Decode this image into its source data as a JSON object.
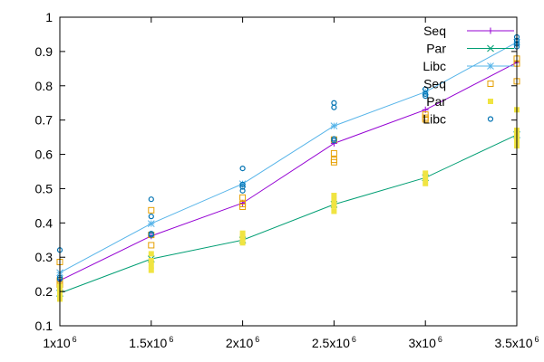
{
  "chart_data": {
    "type": "line",
    "title": "",
    "xlabel": "",
    "ylabel": "",
    "xlim": [
      1000000,
      3500000
    ],
    "ylim": [
      0.1,
      1.0
    ],
    "grid": false,
    "legend_position": "top-right",
    "x_ticks": [
      {
        "value": 1000000,
        "base": "1x10",
        "exp": "6"
      },
      {
        "value": 1500000,
        "base": "1.5x10",
        "exp": "6"
      },
      {
        "value": 2000000,
        "base": "2x10",
        "exp": "6"
      },
      {
        "value": 2500000,
        "base": "2.5x10",
        "exp": "6"
      },
      {
        "value": 3000000,
        "base": "3x10",
        "exp": "6"
      },
      {
        "value": 3500000,
        "base": "3.5x10",
        "exp": "6"
      }
    ],
    "y_ticks": [
      {
        "value": 0.1,
        "label": "0.1"
      },
      {
        "value": 0.2,
        "label": "0.2"
      },
      {
        "value": 0.3,
        "label": "0.3"
      },
      {
        "value": 0.4,
        "label": "0.4"
      },
      {
        "value": 0.5,
        "label": "0.5"
      },
      {
        "value": 0.6,
        "label": "0.6"
      },
      {
        "value": 0.7,
        "label": "0.7"
      },
      {
        "value": 0.8,
        "label": "0.8"
      },
      {
        "value": 0.9,
        "label": "0.9"
      },
      {
        "value": 1.0,
        "label": "1"
      }
    ],
    "series": [
      {
        "name": "Seq",
        "kind": "line",
        "marker": "plus",
        "color": "#9400d3",
        "x": [
          1000000,
          1500000,
          2000000,
          2500000,
          3000000,
          3500000
        ],
        "y": [
          0.232,
          0.362,
          0.458,
          0.632,
          0.73,
          0.868
        ]
      },
      {
        "name": "Par",
        "kind": "line",
        "marker": "cross",
        "color": "#009e73",
        "x": [
          1000000,
          1500000,
          2000000,
          2500000,
          3000000,
          3500000
        ],
        "y": [
          0.195,
          0.295,
          0.35,
          0.454,
          0.532,
          0.657
        ]
      },
      {
        "name": "Libc",
        "kind": "line",
        "marker": "star",
        "color": "#56b4e9",
        "x": [
          1000000,
          1500000,
          2000000,
          2500000,
          3000000,
          3500000
        ],
        "y": [
          0.255,
          0.398,
          0.514,
          0.683,
          0.782,
          0.927
        ]
      },
      {
        "name": "Seq",
        "kind": "points",
        "marker": "open-square",
        "color": "#e69f00",
        "x": [
          1000000,
          1000000,
          1000000,
          1500000,
          1500000,
          1500000,
          2000000,
          2000000,
          2000000,
          2500000,
          2500000,
          2500000,
          2500000,
          3000000,
          3000000,
          3000000,
          3500000,
          3500000,
          3500000
        ],
        "y": [
          0.286,
          0.232,
          0.22,
          0.437,
          0.365,
          0.335,
          0.474,
          0.455,
          0.447,
          0.643,
          0.603,
          0.584,
          0.577,
          0.716,
          0.707,
          0.702,
          0.879,
          0.865,
          0.813
        ]
      },
      {
        "name": "Par",
        "kind": "points",
        "marker": "filled-square",
        "color": "#f0e442",
        "x": [
          1000000,
          1000000,
          1000000,
          1000000,
          1500000,
          1500000,
          1500000,
          1500000,
          2000000,
          2000000,
          2000000,
          2000000,
          2500000,
          2500000,
          2500000,
          2500000,
          3000000,
          3000000,
          3000000,
          3500000,
          3500000,
          3500000,
          3500000,
          3500000
        ],
        "y": [
          0.215,
          0.2,
          0.188,
          0.178,
          0.31,
          0.29,
          0.275,
          0.262,
          0.37,
          0.36,
          0.35,
          0.342,
          0.48,
          0.465,
          0.45,
          0.434,
          0.545,
          0.53,
          0.515,
          0.73,
          0.67,
          0.655,
          0.64,
          0.625
        ]
      },
      {
        "name": "Libc",
        "kind": "points",
        "marker": "open-circle",
        "color": "#0072b2",
        "x": [
          1000000,
          1000000,
          1000000,
          1500000,
          1500000,
          1500000,
          1500000,
          2000000,
          2000000,
          2000000,
          2000000,
          2500000,
          2500000,
          2500000,
          2500000,
          3000000,
          3000000,
          3000000,
          3500000,
          3500000,
          3500000,
          3500000
        ],
        "y": [
          0.321,
          0.241,
          0.236,
          0.469,
          0.419,
          0.369,
          0.365,
          0.559,
          0.512,
          0.505,
          0.494,
          0.75,
          0.737,
          0.645,
          0.64,
          0.79,
          0.776,
          0.77,
          0.942,
          0.932,
          0.922,
          0.914
        ]
      }
    ]
  }
}
